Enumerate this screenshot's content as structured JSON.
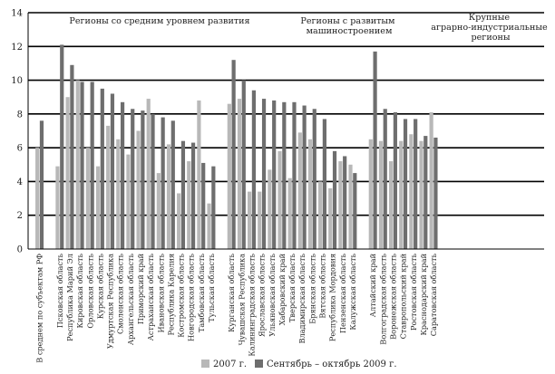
{
  "chart_data": {
    "type": "bar",
    "title": "",
    "xlabel": "",
    "ylabel": "",
    "ylim": [
      0,
      14
    ],
    "yticks": [
      0,
      2,
      4,
      6,
      8,
      10,
      12,
      14
    ],
    "grid": true,
    "legend_position": "bottom",
    "colors": {
      "s1": "#b8b8b8",
      "s2": "#6e6e6e",
      "grid": "#000000"
    },
    "groups": [
      {
        "label_lines": [
          "Регионы со средним уровнем развития"
        ]
      },
      {
        "label_lines": [
          "Регионы с развитым",
          "машиностроением"
        ]
      },
      {
        "label_lines": [
          "Крупные",
          "аграрно-индустриальные",
          "регионы"
        ]
      }
    ],
    "series": [
      {
        "name": "2007 г."
      },
      {
        "name": "Сентябрь – октябрь 2009 г."
      }
    ],
    "categories": [
      "В среднем по субъектам РФ",
      "",
      "Псковская область",
      "Республика Марий Эл",
      "Кировская область",
      "Орловская область",
      "Курская область",
      "Удмуртская Республика",
      "Смоленская область",
      "Архангельская область",
      "Приморский край",
      "Астраханская область",
      "Ивановская область",
      "Республика Карелия",
      "Костромская область",
      "Новгородская область",
      "Тамбовская область",
      "Тульская область",
      "",
      "Курганская область",
      "Чувашская Республика",
      "Калининградская область",
      "Ярославская область",
      "Ульяновская область",
      "Хабаровский край",
      "Тверская область",
      "Владимирская область",
      "Брянская область",
      "Вятская область",
      "Республика Мордовия",
      "Пензенская область",
      "Калужская область",
      "",
      "Алтайский край",
      "Волгоградская область",
      "Воронежская область",
      "Ставропольский край",
      "Ростовская область",
      "Краснодарский край",
      "Саратовская область"
    ],
    "values_2007": [
      6.0,
      null,
      4.9,
      9.0,
      10.0,
      6.0,
      4.9,
      7.3,
      6.5,
      5.6,
      7.0,
      8.9,
      4.5,
      6.2,
      3.3,
      5.2,
      8.8,
      2.7,
      null,
      8.6,
      8.9,
      3.4,
      3.4,
      4.7,
      5.8,
      4.2,
      6.9,
      6.5,
      4.0,
      3.6,
      5.2,
      5.0,
      null,
      6.5,
      6.4,
      5.2,
      6.4,
      6.8,
      6.4,
      8.1
    ],
    "values_2009": [
      7.6,
      null,
      12.1,
      10.9,
      9.9,
      9.9,
      9.5,
      9.2,
      8.7,
      8.3,
      8.2,
      8.0,
      7.8,
      7.6,
      6.4,
      6.3,
      5.1,
      4.9,
      null,
      11.2,
      10.0,
      9.4,
      8.9,
      8.8,
      8.7,
      8.7,
      8.5,
      8.3,
      7.7,
      5.8,
      5.5,
      4.5,
      null,
      11.7,
      8.3,
      8.1,
      7.7,
      7.7,
      6.7,
      6.6
    ]
  }
}
